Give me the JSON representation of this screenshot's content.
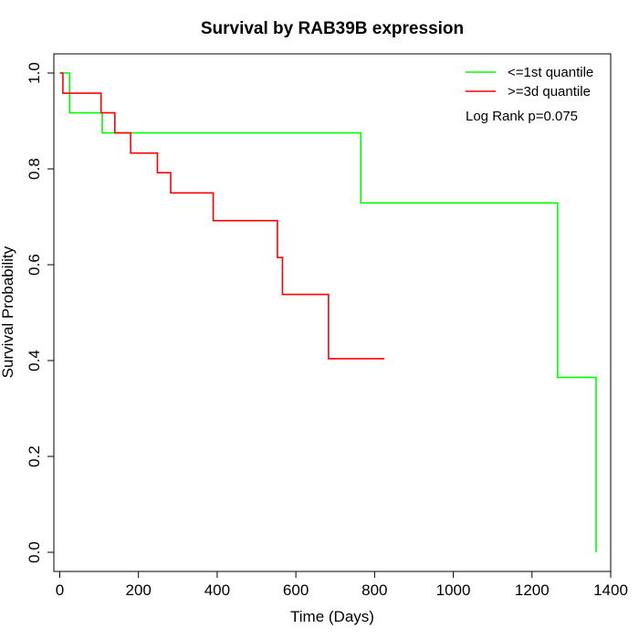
{
  "chart_data": {
    "type": "line",
    "title": "Survival by RAB39B expression",
    "xlabel": "Time (Days)",
    "ylabel": "Survival Probability",
    "xlim": [
      -15,
      1400
    ],
    "ylim": [
      -0.04,
      1.04
    ],
    "x_ticks": [
      0,
      200,
      400,
      600,
      800,
      1000,
      1200,
      1400
    ],
    "y_ticks": [
      0.0,
      0.2,
      0.4,
      0.6,
      0.8,
      1.0
    ],
    "x_tick_labels": [
      "0",
      "200",
      "400",
      "600",
      "800",
      "1000",
      "1200",
      "1400"
    ],
    "y_tick_labels": [
      "0.0",
      "0.2",
      "0.4",
      "0.6",
      "0.8",
      "1.0"
    ],
    "grid": false,
    "legend_position": "top-right",
    "annotation": "Log Rank p=0.075",
    "series": [
      {
        "name": "<=1st quantile",
        "color": "#00ff00",
        "step_points": [
          [
            0,
            1.0
          ],
          [
            25,
            1.0
          ],
          [
            25,
            0.917
          ],
          [
            108,
            0.917
          ],
          [
            108,
            0.875
          ],
          [
            765,
            0.875
          ],
          [
            765,
            0.729
          ],
          [
            1265,
            0.729
          ],
          [
            1265,
            0.365
          ],
          [
            1363,
            0.365
          ],
          [
            1363,
            0.0
          ]
        ]
      },
      {
        "name": ">=3d quantile",
        "color": "#ff0000",
        "step_points": [
          [
            0,
            1.0
          ],
          [
            8,
            1.0
          ],
          [
            8,
            0.958
          ],
          [
            105,
            0.958
          ],
          [
            105,
            0.917
          ],
          [
            140,
            0.917
          ],
          [
            140,
            0.875
          ],
          [
            180,
            0.875
          ],
          [
            180,
            0.833
          ],
          [
            248,
            0.833
          ],
          [
            248,
            0.792
          ],
          [
            282,
            0.792
          ],
          [
            282,
            0.75
          ],
          [
            390,
            0.75
          ],
          [
            390,
            0.692
          ],
          [
            553,
            0.692
          ],
          [
            553,
            0.615
          ],
          [
            566,
            0.615
          ],
          [
            566,
            0.538
          ],
          [
            683,
            0.538
          ],
          [
            683,
            0.404
          ],
          [
            825,
            0.404
          ]
        ]
      }
    ]
  }
}
